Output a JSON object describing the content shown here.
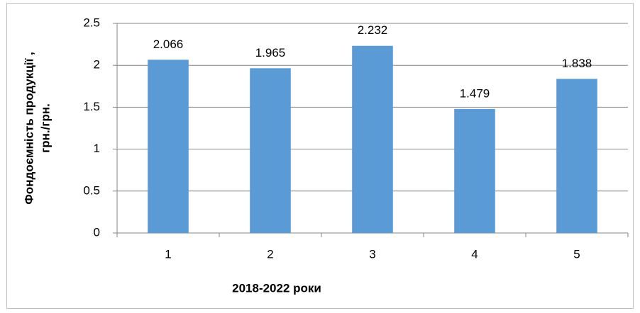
{
  "chart_data": {
    "type": "bar",
    "xlabel": "2018-2022 роки",
    "ylabel": [
      "Фондоємність продукції ,",
      "грн./грн."
    ],
    "categories": [
      "1",
      "2",
      "3",
      "4",
      "5"
    ],
    "values": [
      2.066,
      1.965,
      2.232,
      1.479,
      1.838
    ],
    "color": "#5b9bd5",
    "ylim": [
      0,
      2.5
    ],
    "yticks": [
      0,
      0.5,
      1,
      1.5,
      2,
      2.5
    ],
    "grid": true
  }
}
